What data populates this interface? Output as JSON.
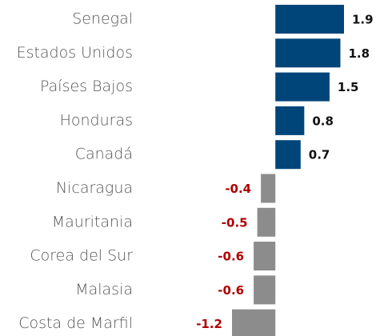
{
  "chart_data": {
    "type": "bar",
    "orientation": "horizontal",
    "categories": [
      "Senegal",
      "Estados Unidos",
      "Países Bajos",
      "Honduras",
      "Canadá",
      "Nicaragua",
      "Mauritania",
      "Corea del Sur",
      "Malasia",
      "Costa de Marfil"
    ],
    "values": [
      1.9,
      1.8,
      1.5,
      0.8,
      0.7,
      -0.4,
      -0.5,
      -0.6,
      -0.6,
      -1.2
    ],
    "color": "#00457a",
    "negative_color": "#8c8c8c",
    "label_color": "#111111",
    "negative_label_color": "#b00000"
  }
}
